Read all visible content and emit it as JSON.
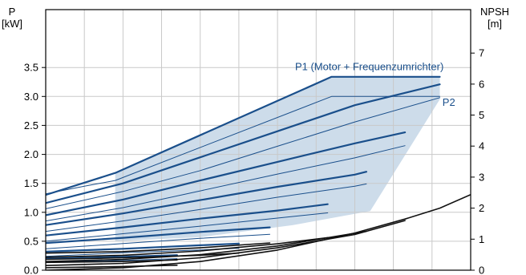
{
  "chart_data": {
    "type": "line",
    "title": "",
    "left_axis": {
      "label_line1": "P",
      "label_line2": "[kW]",
      "ylim": [
        0,
        4.5
      ],
      "ticks": [
        0.0,
        0.5,
        1.0,
        1.5,
        2.0,
        2.5,
        3.0,
        3.5
      ],
      "tick_labels": [
        "0.0",
        "0.5",
        "1.0",
        "1.5",
        "2.0",
        "2.5",
        "3.0",
        "3.5"
      ]
    },
    "right_axis": {
      "label_line1": "NPSH",
      "label_line2": "[m]",
      "ylim": [
        0,
        8.4
      ],
      "ticks": [
        0,
        1,
        2,
        3,
        4,
        5,
        6,
        7
      ],
      "tick_labels": [
        "0",
        "1",
        "2",
        "3",
        "4",
        "5",
        "6",
        "7"
      ]
    },
    "x_axis": {
      "label": "",
      "xlim": [
        0,
        110
      ],
      "tick_labels_visible": false,
      "vertical_gridlines": 11
    },
    "grid": true,
    "annotations": [
      {
        "text": "P1 (Motor + Frequenzumrichter)",
        "x": 103,
        "y": 3.33,
        "anchor": "end"
      },
      {
        "text": "P2",
        "x": 106,
        "y": 2.88,
        "anchor": "end"
      }
    ],
    "region": {
      "name": "operating range",
      "fill": "#c8d8e8",
      "upper_edge": [
        [
          18,
          1.68
        ],
        [
          74,
          3.34
        ],
        [
          102,
          3.34
        ]
      ],
      "lower_edge": [
        [
          18,
          0.5
        ],
        [
          40,
          0.57
        ],
        [
          64,
          0.78
        ],
        [
          84,
          1.02
        ],
        [
          102,
          2.95
        ]
      ]
    },
    "series": [
      {
        "group": "P1",
        "points": [
          [
            0,
            1.3
          ],
          [
            18,
            1.68
          ],
          [
            74,
            3.34
          ],
          [
            102,
            3.34
          ]
        ]
      },
      {
        "group": "P1",
        "points": [
          [
            0,
            1.16
          ],
          [
            20,
            1.5
          ],
          [
            40,
            1.95
          ],
          [
            60,
            2.4
          ],
          [
            80,
            2.85
          ],
          [
            102,
            3.21
          ]
        ]
      },
      {
        "group": "P1",
        "points": [
          [
            0,
            0.95
          ],
          [
            20,
            1.22
          ],
          [
            40,
            1.55
          ],
          [
            60,
            1.87
          ],
          [
            80,
            2.19
          ],
          [
            93,
            2.38
          ]
        ]
      },
      {
        "group": "P1",
        "points": [
          [
            0,
            0.78
          ],
          [
            20,
            0.98
          ],
          [
            40,
            1.21
          ],
          [
            60,
            1.44
          ],
          [
            80,
            1.65
          ],
          [
            83,
            1.7
          ]
        ]
      },
      {
        "group": "P1",
        "points": [
          [
            0,
            0.6
          ],
          [
            20,
            0.74
          ],
          [
            40,
            0.89
          ],
          [
            60,
            1.03
          ],
          [
            73,
            1.14
          ]
        ]
      },
      {
        "group": "P1",
        "points": [
          [
            0,
            0.47
          ],
          [
            20,
            0.56
          ],
          [
            40,
            0.66
          ],
          [
            58,
            0.74
          ]
        ]
      },
      {
        "group": "P1",
        "points": [
          [
            0,
            0.32
          ],
          [
            20,
            0.37
          ],
          [
            40,
            0.43
          ],
          [
            50,
            0.46
          ]
        ]
      },
      {
        "group": "P1",
        "points": [
          [
            0,
            0.2
          ],
          [
            20,
            0.23
          ],
          [
            34,
            0.26
          ]
        ]
      },
      {
        "group": "P2",
        "points": [
          [
            0,
            1.32
          ],
          [
            10,
            1.45
          ],
          [
            18,
            1.55
          ],
          [
            74,
            3.0
          ],
          [
            102,
            3.0
          ]
        ]
      },
      {
        "group": "P2",
        "points": [
          [
            0,
            1.06
          ],
          [
            20,
            1.36
          ],
          [
            40,
            1.72
          ],
          [
            60,
            2.14
          ],
          [
            80,
            2.56
          ],
          [
            102,
            2.98
          ]
        ]
      },
      {
        "group": "P2",
        "points": [
          [
            0,
            0.85
          ],
          [
            20,
            1.08
          ],
          [
            40,
            1.37
          ],
          [
            60,
            1.66
          ],
          [
            80,
            1.94
          ],
          [
            93,
            2.15
          ]
        ]
      },
      {
        "group": "P2",
        "points": [
          [
            0,
            0.67
          ],
          [
            20,
            0.85
          ],
          [
            40,
            1.05
          ],
          [
            60,
            1.26
          ],
          [
            80,
            1.45
          ],
          [
            83,
            1.49
          ]
        ]
      },
      {
        "group": "P2",
        "points": [
          [
            0,
            0.5
          ],
          [
            20,
            0.63
          ],
          [
            40,
            0.76
          ],
          [
            60,
            0.9
          ],
          [
            73,
            0.99
          ]
        ]
      },
      {
        "group": "P2",
        "points": [
          [
            0,
            0.37
          ],
          [
            20,
            0.46
          ],
          [
            40,
            0.55
          ],
          [
            58,
            0.62
          ]
        ]
      },
      {
        "group": "P2",
        "points": [
          [
            0,
            0.24
          ],
          [
            20,
            0.3
          ],
          [
            40,
            0.35
          ],
          [
            50,
            0.38
          ]
        ]
      },
      {
        "group": "P2",
        "points": [
          [
            0,
            0.14
          ],
          [
            20,
            0.17
          ],
          [
            34,
            0.2
          ]
        ]
      },
      {
        "group": "NPSH",
        "points": [
          [
            0,
            0.0
          ],
          [
            20,
            0.08
          ],
          [
            40,
            0.28
          ],
          [
            60,
            0.65
          ],
          [
            80,
            1.2
          ],
          [
            93,
            1.65
          ],
          [
            102,
            2.0
          ],
          [
            113,
            2.6
          ]
        ]
      },
      {
        "group": "NPSH",
        "points": [
          [
            0,
            0.15
          ],
          [
            20,
            0.22
          ],
          [
            40,
            0.4
          ],
          [
            60,
            0.72
          ],
          [
            80,
            1.15
          ],
          [
            93,
            1.6
          ]
        ]
      },
      {
        "group": "NPSH",
        "points": [
          [
            0,
            0.28
          ],
          [
            20,
            0.35
          ],
          [
            40,
            0.5
          ],
          [
            60,
            0.78
          ],
          [
            83,
            1.25
          ]
        ]
      },
      {
        "group": "NPSH",
        "points": [
          [
            0,
            0.42
          ],
          [
            20,
            0.48
          ],
          [
            40,
            0.62
          ],
          [
            60,
            0.85
          ],
          [
            73,
            1.05
          ]
        ]
      },
      {
        "group": "NPSH",
        "points": [
          [
            0,
            0.55
          ],
          [
            20,
            0.6
          ],
          [
            40,
            0.72
          ],
          [
            58,
            0.88
          ]
        ]
      },
      {
        "group": "NPSH",
        "points": [
          [
            0,
            0.35
          ],
          [
            20,
            0.4
          ],
          [
            40,
            0.48
          ],
          [
            50,
            0.55
          ]
        ]
      },
      {
        "group": "NPSH",
        "points": [
          [
            0,
            0.25
          ],
          [
            20,
            0.28
          ],
          [
            34,
            0.33
          ]
        ]
      },
      {
        "group": "NPSH",
        "points": [
          [
            0,
            0.08
          ],
          [
            20,
            0.12
          ],
          [
            34,
            0.16
          ]
        ]
      }
    ],
    "colors": {
      "p1": "#1a4f8b",
      "p2": "#1a4f8b",
      "npsh": "#111111",
      "annotation": "#1a4f8b",
      "region": "#c8d8e8",
      "grid": "#c9c9c9",
      "axis": "#000000"
    }
  }
}
